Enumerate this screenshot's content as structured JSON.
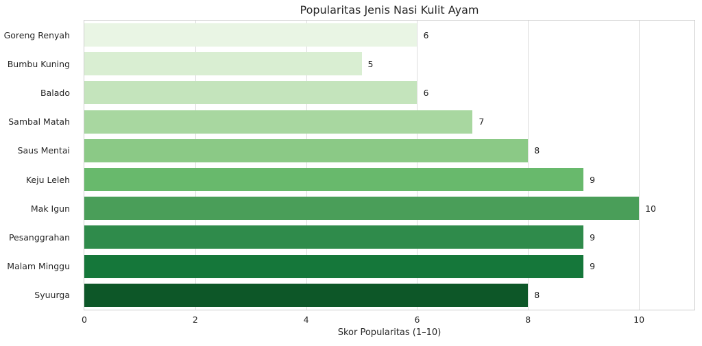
{
  "chart_data": {
    "type": "bar",
    "orientation": "horizontal",
    "title": "Popularitas Jenis Nasi Kulit Ayam",
    "xlabel": "Skor Popularitas (1–10)",
    "ylabel": "",
    "categories": [
      "Goreng Renyah",
      "Bumbu Kuning",
      "Balado",
      "Sambal Matah",
      "Saus Mentai",
      "Keju Leleh",
      "Mak Igun",
      "Pesanggrahan",
      "Malam Minggu",
      "Syuurga"
    ],
    "values": [
      6,
      5,
      6,
      7,
      8,
      9,
      10,
      9,
      9,
      8
    ],
    "value_labels": [
      "6",
      "5",
      "6",
      "7",
      "8",
      "9",
      "10",
      "9",
      "9",
      "8"
    ],
    "bar_colors": [
      "#e9f5e4",
      "#d9eed2",
      "#c4e4bc",
      "#a8d7a0",
      "#8bc986",
      "#68b96c",
      "#4a9e59",
      "#2f8b4b",
      "#15773a",
      "#0d5728"
    ],
    "xlim": [
      0,
      11
    ],
    "xticks": [
      0,
      2,
      4,
      6,
      8,
      10
    ],
    "grid": "vertical",
    "legend": "none",
    "colors": {
      "grid": "#dcdcdc",
      "spine": "#cccccc",
      "background": "#ffffff",
      "text": "#262626",
      "value_text": "#1a1a1a"
    }
  }
}
